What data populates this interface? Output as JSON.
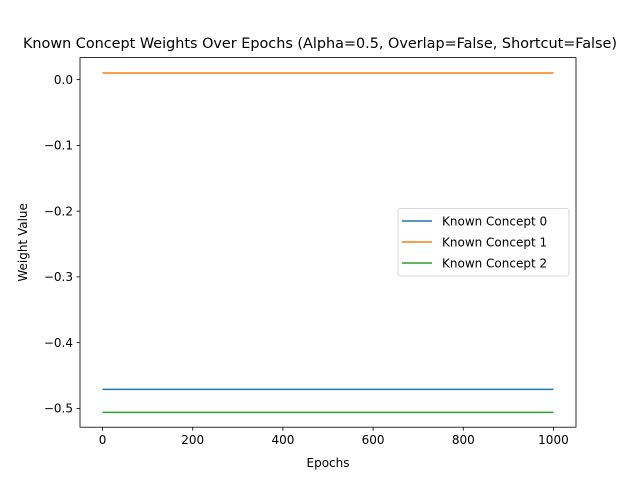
{
  "chart_data": {
    "type": "line",
    "title": "Known Concept Weights Over Epochs (Alpha=0.5, Overlap=False, Shortcut=False)",
    "xlabel": "Epochs",
    "ylabel": "Weight Value",
    "xlim": [
      -50,
      1050
    ],
    "ylim": [
      -0.5286,
      0.0335
    ],
    "xticks": [
      0,
      200,
      400,
      600,
      800,
      1000
    ],
    "xtick_labels": [
      "0",
      "200",
      "400",
      "600",
      "800",
      "1000"
    ],
    "yticks": [
      0.0,
      -0.1,
      -0.2,
      -0.3,
      -0.4,
      -0.5
    ],
    "ytick_labels": [
      "0.0",
      "−0.1",
      "−0.2",
      "−0.3",
      "−0.4",
      "−0.5"
    ],
    "grid": false,
    "legend_position": "center-right",
    "series": [
      {
        "name": "Known Concept 0",
        "color": "#1f77b4",
        "x": [
          0,
          1000
        ],
        "y": [
          -0.471,
          -0.471
        ]
      },
      {
        "name": "Known Concept 1",
        "color": "#ff7f0e",
        "x": [
          0,
          1000
        ],
        "y": [
          0.01,
          0.01
        ]
      },
      {
        "name": "Known Concept 2",
        "color": "#2ca02c",
        "x": [
          0,
          1000
        ],
        "y": [
          -0.506,
          -0.506
        ]
      }
    ]
  }
}
